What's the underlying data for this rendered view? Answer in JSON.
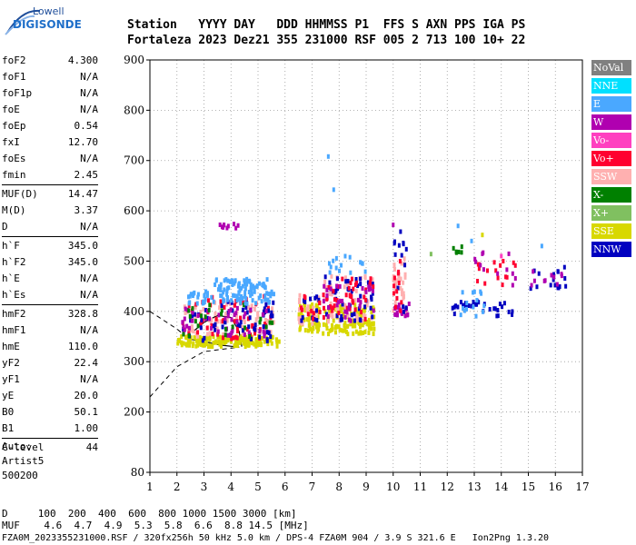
{
  "logo": {
    "top": "Lowell",
    "bottom": "DIGISONDE"
  },
  "header": {
    "line1": "Station   YYYY DAY   DDD HHMMSS P1  FFS S AXN PPS IGA PS",
    "line2": "Fortaleza 2023 Dez21 355 231000 RSF 005 2 713 100 10+ 22"
  },
  "params": [
    {
      "group": [
        {
          "k": "foF2",
          "v": "4.300"
        },
        {
          "k": "foF1",
          "v": "N/A"
        },
        {
          "k": "foF1p",
          "v": "N/A"
        },
        {
          "k": "foE",
          "v": "N/A"
        },
        {
          "k": "foEp",
          "v": "0.54"
        },
        {
          "k": "fxI",
          "v": "12.70"
        },
        {
          "k": "foEs",
          "v": "N/A"
        },
        {
          "k": "fmin",
          "v": "2.45"
        }
      ]
    },
    {
      "group": [
        {
          "k": "MUF(D)",
          "v": "14.47"
        },
        {
          "k": "M(D)",
          "v": "3.37"
        },
        {
          "k": "D",
          "v": "N/A"
        }
      ]
    },
    {
      "group": [
        {
          "k": "h`F",
          "v": "345.0"
        },
        {
          "k": "h`F2",
          "v": "345.0"
        },
        {
          "k": "h`E",
          "v": "N/A"
        },
        {
          "k": "h`Es",
          "v": "N/A"
        }
      ]
    },
    {
      "group": [
        {
          "k": "hmF2",
          "v": "328.8"
        },
        {
          "k": "hmF1",
          "v": "N/A"
        },
        {
          "k": "hmE",
          "v": "110.0"
        },
        {
          "k": "yF2",
          "v": "22.4"
        },
        {
          "k": "yF1",
          "v": "N/A"
        },
        {
          "k": "yE",
          "v": "20.0"
        },
        {
          "k": "B0",
          "v": "50.1"
        },
        {
          "k": "B1",
          "v": "1.00"
        }
      ]
    },
    {
      "group": [
        {
          "k": "C-level",
          "v": "44"
        }
      ]
    }
  ],
  "auto": [
    "Auto:",
    "Artist5",
    "500200"
  ],
  "legend": [
    {
      "label": "NoVal",
      "color": "#808080"
    },
    {
      "label": "NNE",
      "color": "#00e0ff"
    },
    {
      "label": "E",
      "color": "#4aa8ff"
    },
    {
      "label": "W",
      "color": "#b000b0"
    },
    {
      "label": "Vo-",
      "color": "#ff40c0"
    },
    {
      "label": "Vo+",
      "color": "#ff0030"
    },
    {
      "label": "SSW",
      "color": "#ffb0b0"
    },
    {
      "label": "X-",
      "color": "#008000"
    },
    {
      "label": "X+",
      "color": "#80c060"
    },
    {
      "label": "SSE",
      "color": "#d8d800"
    },
    {
      "label": "NNW",
      "color": "#0000c0"
    }
  ],
  "footer": {
    "line1": "D     100  200  400  600  800 1000 1500 3000 [km]",
    "line2": "MUF    4.6  4.7  4.9  5.3  5.8  6.6  8.8 14.5 [MHz]",
    "line3": "FZA0M_2023355231000.RSF / 320fx256h 50 kHz 5.0 km / DPS-4 FZA0M 904 / 3.9 S 321.6 E   Ion2Png 1.3.20"
  },
  "chart_data": {
    "type": "scatter",
    "title": "",
    "xlabel": "",
    "ylabel": "",
    "xlim": [
      1,
      17
    ],
    "ylim": [
      80,
      900
    ],
    "x_ticks": [
      1,
      2,
      3,
      4,
      5,
      6,
      7,
      8,
      9,
      10,
      11,
      12,
      13,
      14,
      15,
      16,
      17
    ],
    "y_ticks": [
      80,
      200,
      300,
      400,
      500,
      600,
      700,
      800,
      900
    ],
    "grid": true,
    "grid_style": "dotted",
    "legend_position": "right",
    "clusters": [
      {
        "x0": 2.0,
        "x1": 5.8,
        "y0": 330,
        "y1": 350,
        "color": "#d8d800",
        "n": 160
      },
      {
        "x0": 2.2,
        "x1": 5.6,
        "y0": 350,
        "y1": 420,
        "color": "#ffb0b0",
        "n": 70
      },
      {
        "x0": 2.2,
        "x1": 5.6,
        "y0": 345,
        "y1": 430,
        "color": "#ff0030",
        "n": 60
      },
      {
        "x0": 2.2,
        "x1": 5.6,
        "y0": 340,
        "y1": 420,
        "color": "#0000c0",
        "n": 55
      },
      {
        "x0": 2.2,
        "x1": 5.6,
        "y0": 350,
        "y1": 410,
        "color": "#b000b0",
        "n": 45
      },
      {
        "x0": 2.2,
        "x1": 5.6,
        "y0": 350,
        "y1": 420,
        "color": "#008000",
        "n": 25
      },
      {
        "x0": 2.4,
        "x1": 5.6,
        "y0": 415,
        "y1": 440,
        "color": "#4aa8ff",
        "n": 75
      },
      {
        "x0": 3.4,
        "x1": 5.4,
        "y0": 440,
        "y1": 465,
        "color": "#4aa8ff",
        "n": 55
      },
      {
        "x0": 3.3,
        "x1": 4.3,
        "y0": 565,
        "y1": 575,
        "color": "#b000b0",
        "n": 10
      },
      {
        "x0": 6.5,
        "x1": 7.3,
        "y0": 360,
        "y1": 415,
        "color": "#d8d800",
        "n": 60
      },
      {
        "x0": 6.5,
        "x1": 7.3,
        "y0": 375,
        "y1": 435,
        "color": "#ffb0b0",
        "n": 25
      },
      {
        "x0": 6.5,
        "x1": 7.3,
        "y0": 380,
        "y1": 430,
        "color": "#0000c0",
        "n": 12
      },
      {
        "x0": 6.5,
        "x1": 7.3,
        "y0": 380,
        "y1": 430,
        "color": "#ff0030",
        "n": 12
      },
      {
        "x0": 7.4,
        "x1": 9.3,
        "y0": 355,
        "y1": 415,
        "color": "#d8d800",
        "n": 120
      },
      {
        "x0": 7.4,
        "x1": 9.3,
        "y0": 380,
        "y1": 470,
        "color": "#ffb0b0",
        "n": 55
      },
      {
        "x0": 7.4,
        "x1": 9.3,
        "y0": 380,
        "y1": 470,
        "color": "#0000c0",
        "n": 45
      },
      {
        "x0": 7.4,
        "x1": 9.3,
        "y0": 380,
        "y1": 470,
        "color": "#ff0030",
        "n": 40
      },
      {
        "x0": 7.4,
        "x1": 9.3,
        "y0": 380,
        "y1": 460,
        "color": "#b000b0",
        "n": 30
      },
      {
        "x0": 7.6,
        "x1": 9.0,
        "y0": 470,
        "y1": 510,
        "color": "#4aa8ff",
        "n": 15
      },
      {
        "x0": 10.0,
        "x1": 10.5,
        "y0": 385,
        "y1": 510,
        "color": "#ffb0b0",
        "n": 30
      },
      {
        "x0": 10.0,
        "x1": 10.6,
        "y0": 390,
        "y1": 420,
        "color": "#b000b0",
        "n": 18
      },
      {
        "x0": 10.0,
        "x1": 10.5,
        "y0": 395,
        "y1": 560,
        "color": "#0000c0",
        "n": 14
      },
      {
        "x0": 10.0,
        "x1": 10.5,
        "y0": 400,
        "y1": 500,
        "color": "#ff0030",
        "n": 12
      },
      {
        "x0": 12.2,
        "x1": 13.4,
        "y0": 395,
        "y1": 420,
        "color": "#0000c0",
        "n": 20
      },
      {
        "x0": 12.5,
        "x1": 13.5,
        "y0": 390,
        "y1": 440,
        "color": "#4aa8ff",
        "n": 15
      },
      {
        "x0": 12.2,
        "x1": 12.6,
        "y0": 515,
        "y1": 530,
        "color": "#008000",
        "n": 6
      },
      {
        "x0": 13.0,
        "x1": 14.6,
        "y0": 450,
        "y1": 500,
        "color": "#ff0030",
        "n": 16
      },
      {
        "x0": 13.0,
        "x1": 14.6,
        "y0": 440,
        "y1": 520,
        "color": "#b000b0",
        "n": 12
      },
      {
        "x0": 13.5,
        "x1": 14.5,
        "y0": 390,
        "y1": 420,
        "color": "#0000c0",
        "n": 12
      },
      {
        "x0": 15.0,
        "x1": 16.4,
        "y0": 445,
        "y1": 490,
        "color": "#0000c0",
        "n": 16
      },
      {
        "x0": 15.0,
        "x1": 16.4,
        "y0": 450,
        "y1": 480,
        "color": "#b000b0",
        "n": 10
      }
    ],
    "outliers": [
      {
        "x": 7.6,
        "y": 708,
        "color": "#4aa8ff"
      },
      {
        "x": 7.8,
        "y": 642,
        "color": "#4aa8ff"
      },
      {
        "x": 12.4,
        "y": 570,
        "color": "#4aa8ff"
      },
      {
        "x": 12.9,
        "y": 540,
        "color": "#4aa8ff"
      },
      {
        "x": 13.3,
        "y": 552,
        "color": "#d8d800"
      },
      {
        "x": 15.5,
        "y": 530,
        "color": "#4aa8ff"
      },
      {
        "x": 10.0,
        "y": 572,
        "color": "#b000b0"
      },
      {
        "x": 11.4,
        "y": 514,
        "color": "#80c060"
      },
      {
        "x": 14.0,
        "y": 510,
        "color": "#ff40c0"
      }
    ],
    "profile_curves": {
      "solid": [
        [
          2.45,
          345
        ],
        [
          3.0,
          340
        ],
        [
          3.6,
          333
        ],
        [
          4.3,
          328.8
        ]
      ],
      "solid2": [
        [
          2.6,
          360
        ],
        [
          3.0,
          378
        ],
        [
          3.5,
          392
        ],
        [
          4.0,
          388
        ],
        [
          4.3,
          360
        ],
        [
          4.4,
          330
        ]
      ],
      "dashed_lower": [
        [
          1,
          230
        ],
        [
          2.0,
          290
        ],
        [
          3.0,
          320
        ],
        [
          4.3,
          328.8
        ]
      ],
      "dashed_upper": [
        [
          1,
          400
        ],
        [
          2.0,
          365
        ],
        [
          2.45,
          345
        ]
      ]
    }
  }
}
